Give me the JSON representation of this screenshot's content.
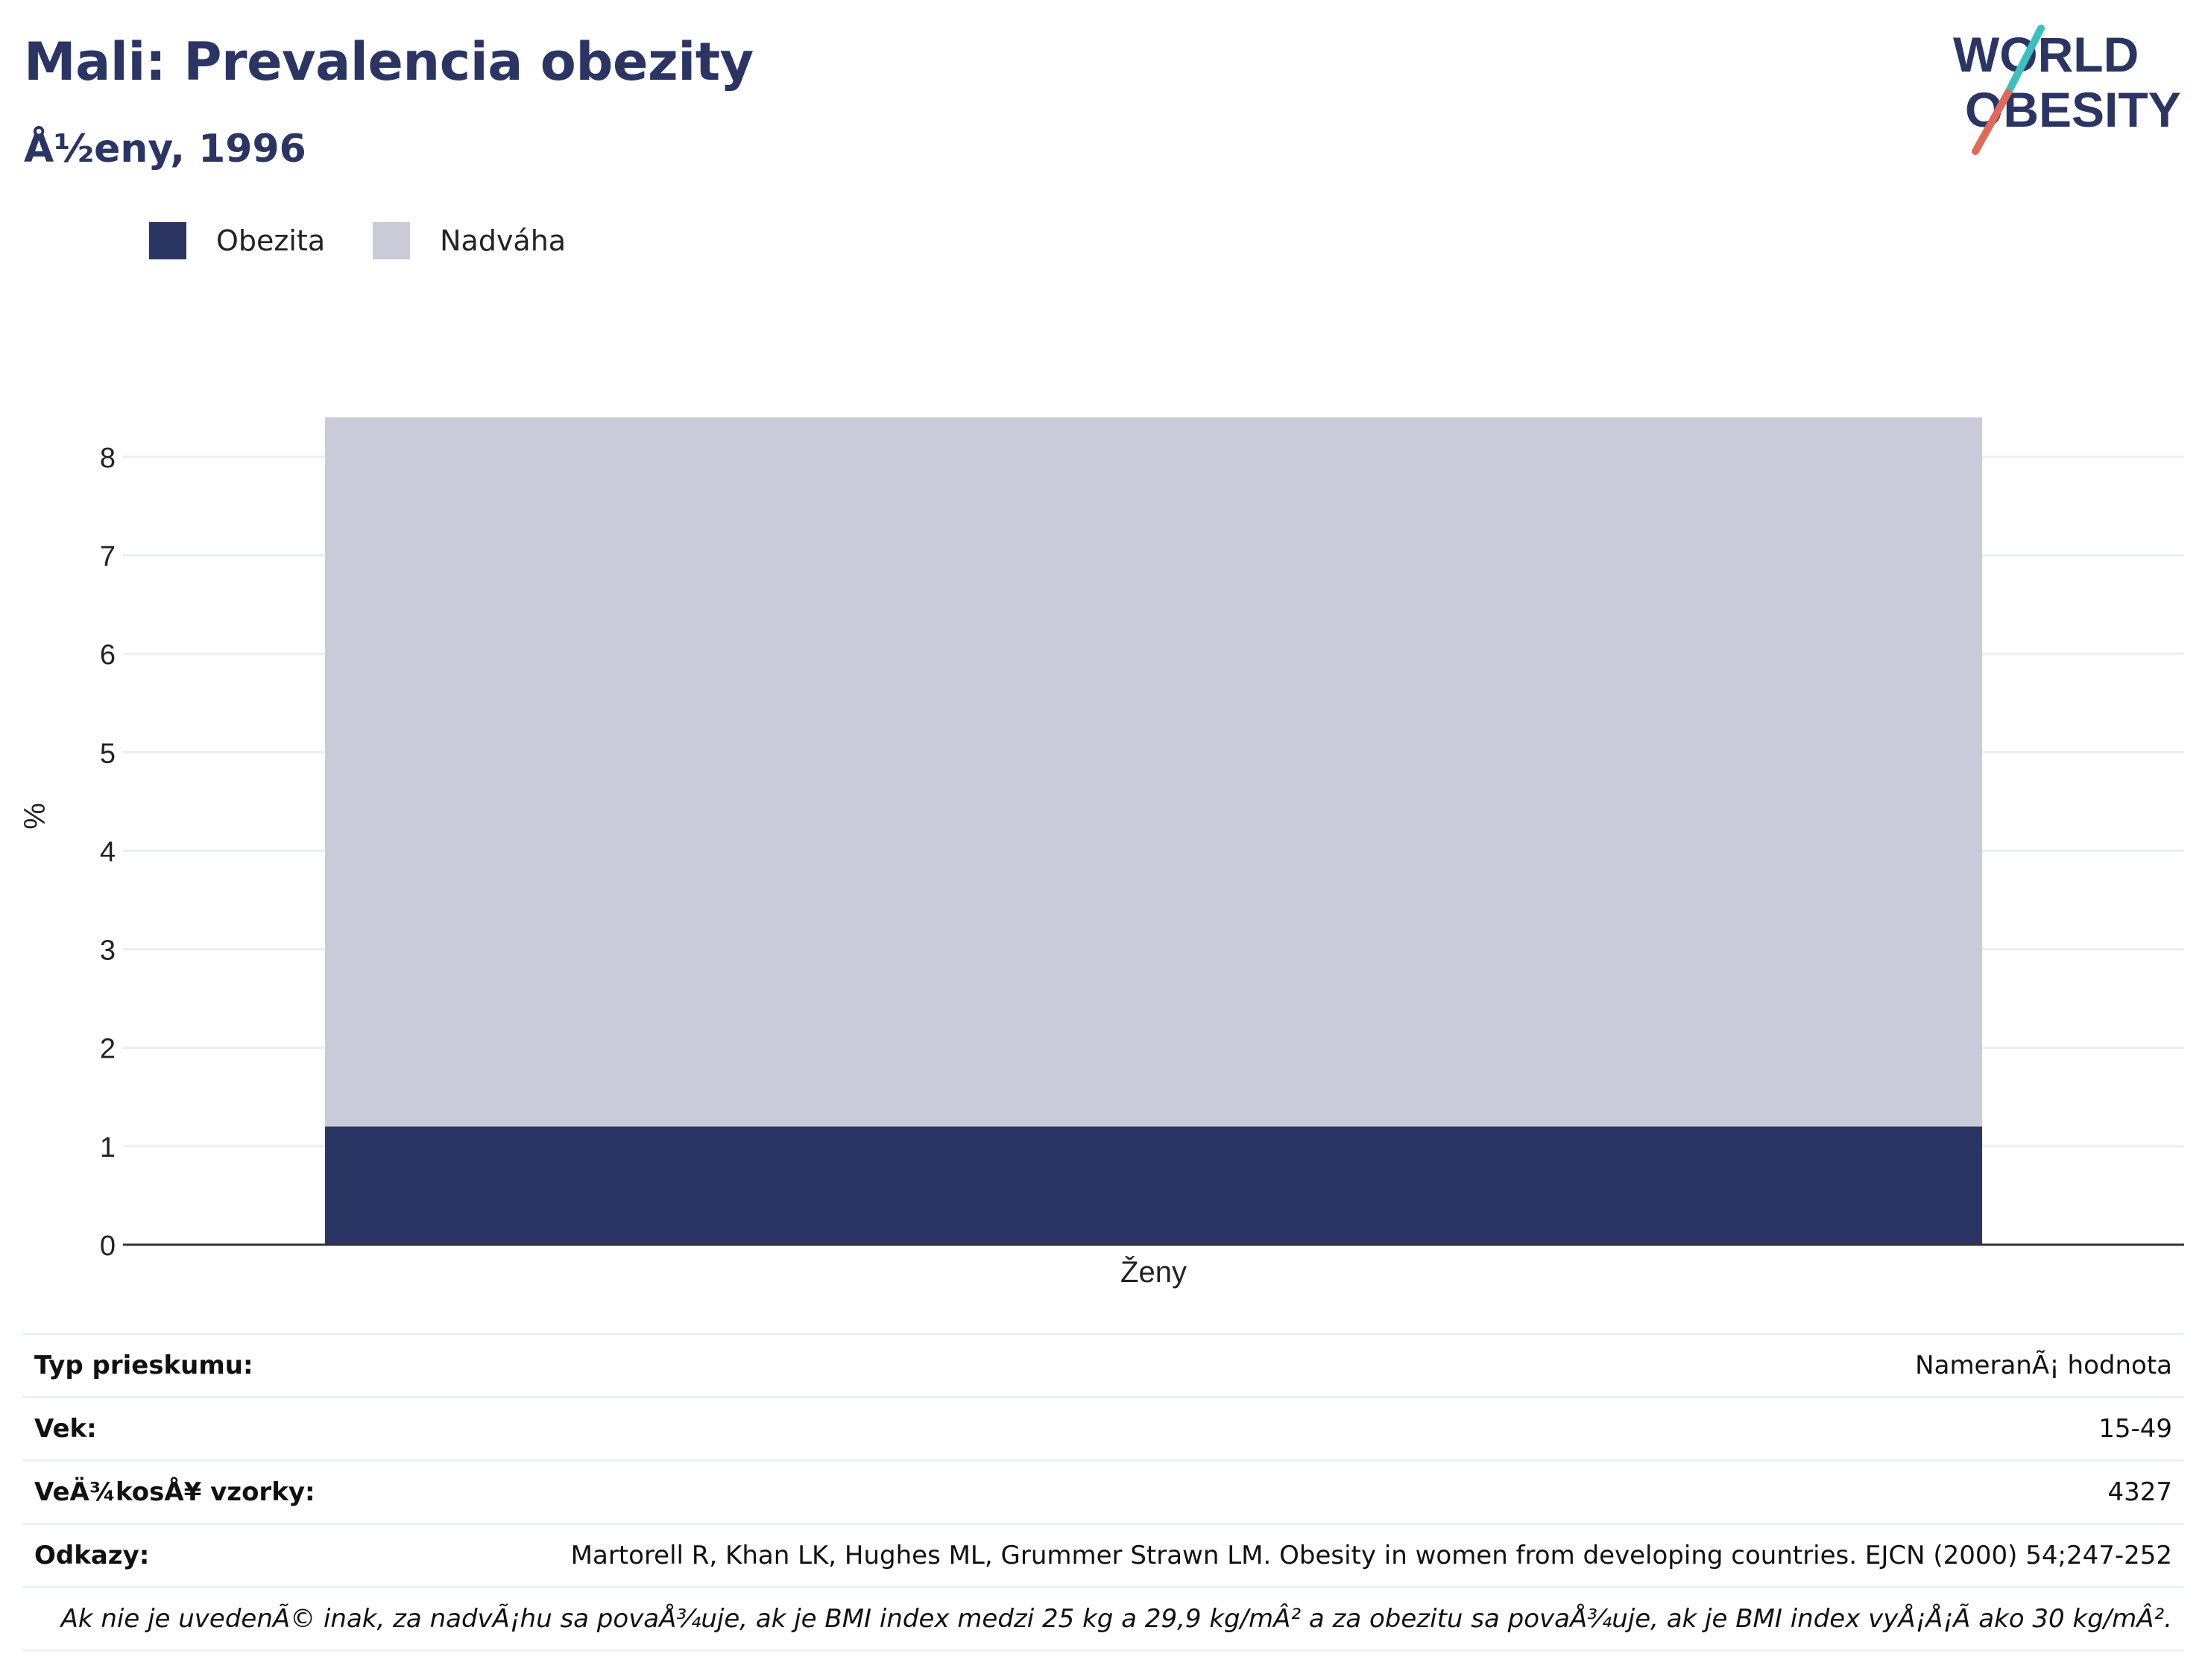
{
  "header": {
    "title": "Mali: Prevalencia obezity",
    "subtitle": "Å½eny, 1996"
  },
  "logo": {
    "line1": "WORLD",
    "line2": "OBESITY",
    "colors": {
      "text": "#2b3564",
      "slash_top": "#3bbfbf",
      "slash_bottom": "#e06a5a"
    }
  },
  "legend": {
    "items": [
      {
        "label": "Obezita",
        "color": "#2b3564"
      },
      {
        "label": "Nadváha",
        "color": "#c9ccd8"
      }
    ]
  },
  "chart_data": {
    "type": "bar",
    "stacked": true,
    "categories": [
      "Ženy"
    ],
    "series": [
      {
        "name": "Obezita",
        "values": [
          1.2
        ],
        "color": "#2b3564"
      },
      {
        "name": "Nadváha",
        "values": [
          7.2
        ],
        "color": "#c9ccd8"
      }
    ],
    "title": "Mali: Prevalencia obezity",
    "subtitle": "Å½eny, 1996",
    "xlabel": "",
    "ylabel": "%",
    "ylim": [
      0,
      8.4
    ],
    "yticks": [
      0,
      1,
      2,
      3,
      4,
      5,
      6,
      7,
      8
    ],
    "grid": true,
    "legend_position": "top-left"
  },
  "info": {
    "rows": [
      {
        "key": "Typ prieskumu:",
        "value": "NameranÃ¡ hodnota"
      },
      {
        "key": "Vek:",
        "value": "15-49"
      },
      {
        "key": "VeÄ¾kosÅ¥ vzorky:",
        "value": "4327"
      },
      {
        "key": "Odkazy:",
        "value": "Martorell R, Khan LK, Hughes ML, Grummer Strawn LM. Obesity in women from developing countries. EJCN (2000) 54;247-252"
      }
    ],
    "note": "Ak nie je uvedenÃ© inak, za nadvÃ¡hu sa povaÅ¾uje, ak je BMI index medzi 25 kg a 29,9 kg/mÂ² a za obezitu sa povaÅ¾uje, ak je BMI index vyÅ¡Å¡Ã­ ako 30 kg/mÂ²."
  }
}
